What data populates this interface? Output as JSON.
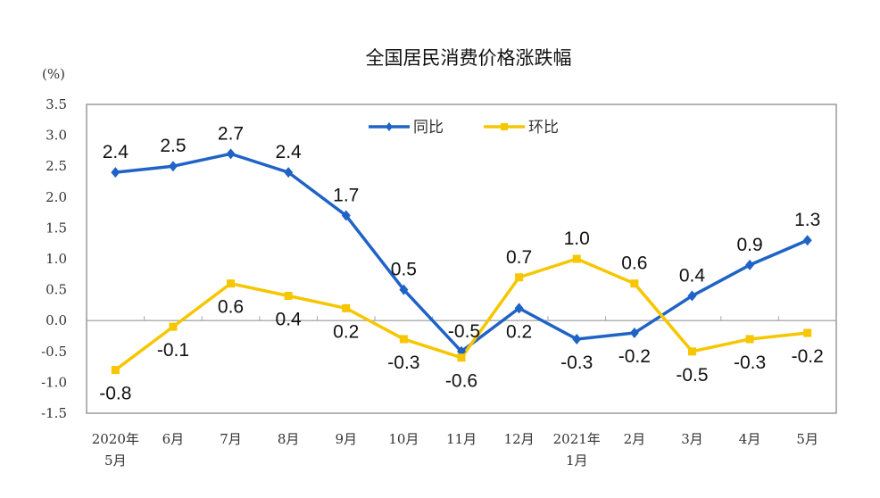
{
  "chart_data": {
    "type": "line",
    "title": "全国居民消费价格涨跌幅",
    "ylabel": "(%)",
    "ylim": [
      -1.5,
      3.5
    ],
    "yticks": [
      "3.5",
      "3.0",
      "2.5",
      "2.0",
      "1.5",
      "1.0",
      "0.5",
      "0.0",
      "-0.5",
      "-1.0",
      "-1.5"
    ],
    "categories": [
      [
        "2020年",
        "5月"
      ],
      [
        "6月"
      ],
      [
        "7月"
      ],
      [
        "8月"
      ],
      [
        "9月"
      ],
      [
        "10月"
      ],
      [
        "11月"
      ],
      [
        "12月"
      ],
      [
        "2021年",
        "1月"
      ],
      [
        "2月"
      ],
      [
        "3月"
      ],
      [
        "4月"
      ],
      [
        "5月"
      ]
    ],
    "legend_position": "top-center",
    "grid": false,
    "series": [
      {
        "name": "同比",
        "color": "#1f63c6",
        "marker": "diamond",
        "values": [
          2.4,
          2.5,
          2.7,
          2.4,
          1.7,
          0.5,
          -0.5,
          0.2,
          -0.3,
          -0.2,
          0.4,
          0.9,
          1.3
        ],
        "labels": [
          "2.4",
          "2.5",
          "2.7",
          "2.4",
          "1.7",
          "0.5",
          "-0.5",
          "0.2",
          "-0.3",
          "-0.2",
          "0.4",
          "0.9",
          "1.3"
        ]
      },
      {
        "name": "环比",
        "color": "#f6c600",
        "marker": "square",
        "values": [
          -0.8,
          -0.1,
          0.6,
          0.4,
          0.2,
          -0.3,
          -0.6,
          0.7,
          1.0,
          0.6,
          -0.5,
          -0.3,
          -0.2
        ],
        "labels": [
          "-0.8",
          "-0.1",
          "0.6",
          "0.4",
          "0.2",
          "-0.3",
          "-0.6",
          "0.7",
          "1.0",
          "0.6",
          "-0.5",
          "-0.3",
          "-0.2"
        ]
      }
    ]
  }
}
